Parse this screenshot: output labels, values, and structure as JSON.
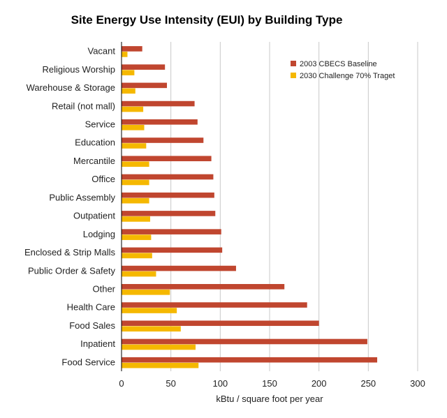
{
  "chart_data": {
    "type": "bar",
    "orientation": "horizontal",
    "title": "Site Energy Use Intensity (EUI) by Building Type",
    "xlabel": "kBtu / square foot per year",
    "ylabel": "",
    "xlim": [
      0,
      300
    ],
    "xticks": [
      0,
      50,
      100,
      150,
      200,
      250,
      300
    ],
    "grid": true,
    "legend_position": "top-right",
    "categories": [
      "Vacant",
      "Religious Worship",
      "Warehouse & Storage",
      "Retail (not mall)",
      "Service",
      "Education",
      "Mercantile",
      "Office",
      "Public Assembly",
      "Outpatient",
      "Lodging",
      "Enclosed & Strip Malls",
      "Public Order & Safety",
      "Other",
      "Health Care",
      "Food Sales",
      "Inpatient",
      "Food Service"
    ],
    "series": [
      {
        "name": "2003 CBECS Baseline",
        "color": "#c0462f",
        "values": [
          21,
          44,
          46,
          74,
          77,
          83,
          91,
          93,
          94,
          95,
          101,
          102,
          116,
          165,
          188,
          200,
          249,
          259
        ]
      },
      {
        "name": "2030 Challenge 70% Traget",
        "color": "#f5b800",
        "values": [
          6,
          13,
          14,
          22,
          23,
          25,
          28,
          28,
          28,
          29,
          30,
          31,
          35,
          49,
          56,
          60,
          75,
          78
        ]
      }
    ]
  }
}
